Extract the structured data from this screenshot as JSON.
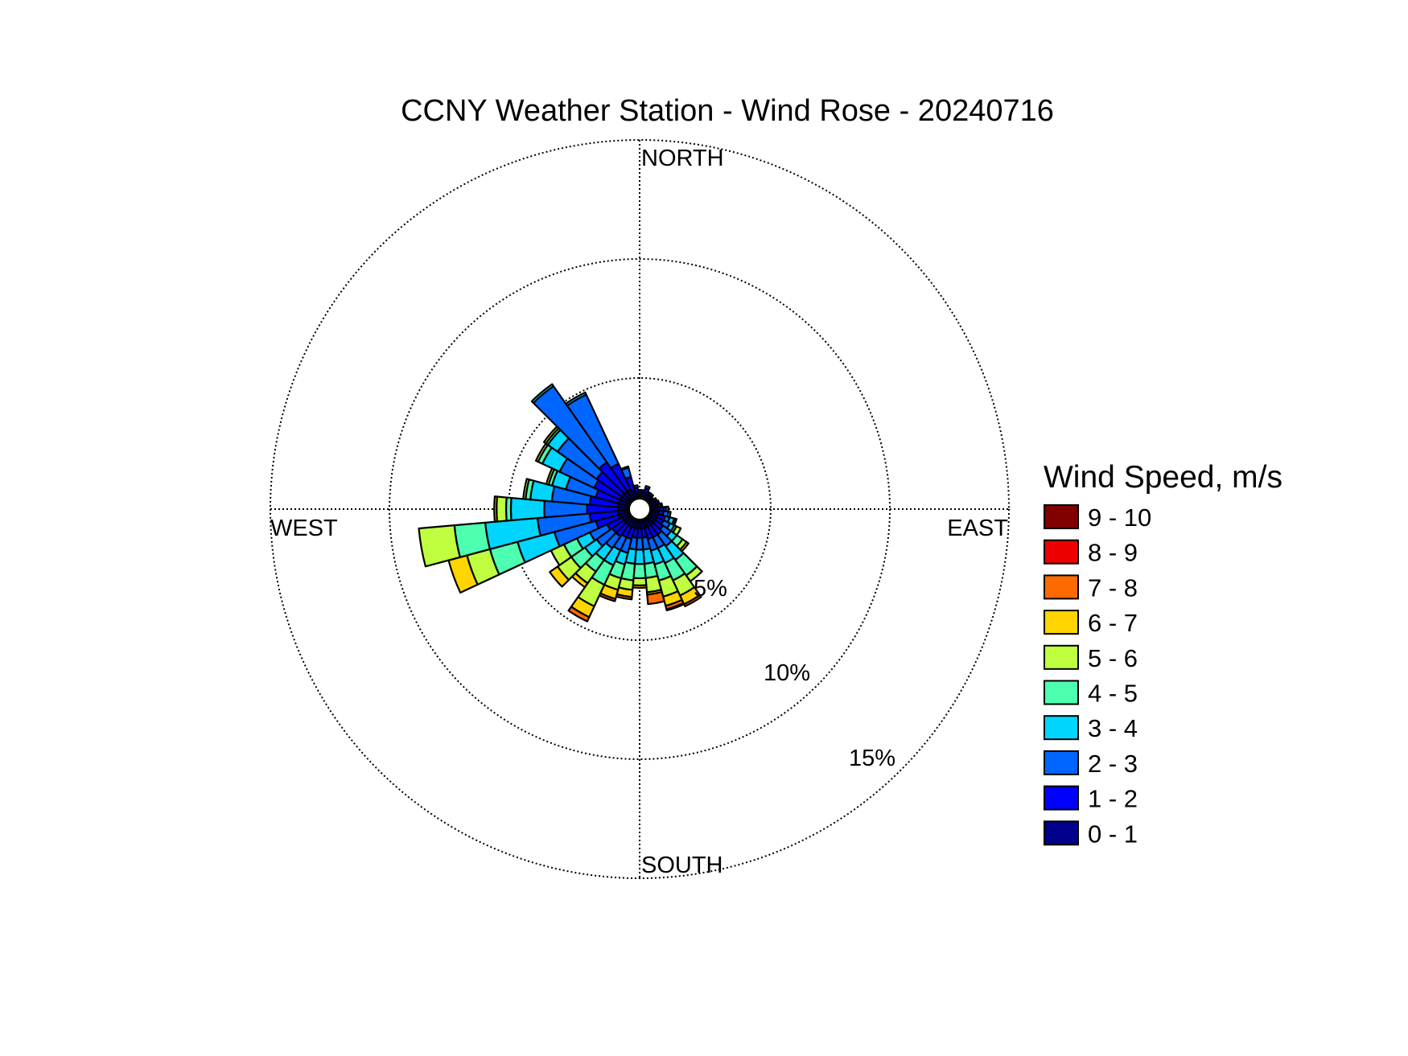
{
  "chart_data": {
    "type": "wind-rose",
    "title": "CCNY Weather Station - Wind Rose - 20240716",
    "direction_labels": {
      "north": "NORTH",
      "south": "SOUTH",
      "west": "WEST",
      "east": "EAST"
    },
    "radial_ticks": [
      5,
      10,
      15
    ],
    "radial_tick_labels": [
      "5%",
      "10%",
      "15%"
    ],
    "radial_max": 15,
    "grid": true,
    "legend": {
      "title": "Wind Speed, m/s",
      "placement": "right",
      "entries": [
        {
          "label": "9 - 10",
          "color": "#800000"
        },
        {
          "label": "8 - 9",
          "color": "#ee0000"
        },
        {
          "label": "7 - 8",
          "color": "#ff6a00"
        },
        {
          "label": "6 - 7",
          "color": "#ffd400"
        },
        {
          "label": "5 - 6",
          "color": "#bfff40"
        },
        {
          "label": "4 - 5",
          "color": "#4dffb0"
        },
        {
          "label": "3 - 4",
          "color": "#00d5ff"
        },
        {
          "label": "2 - 3",
          "color": "#0066ff"
        },
        {
          "label": "1 - 2",
          "color": "#0000ff"
        },
        {
          "label": "0 - 1",
          "color": "#00008a"
        }
      ]
    },
    "speed_bins": [
      "0 - 1",
      "1 - 2",
      "2 - 3",
      "3 - 4",
      "4 - 5",
      "5 - 6",
      "6 - 7",
      "7 - 8",
      "8 - 9",
      "9 - 10"
    ],
    "directions_deg": [
      0,
      10,
      20,
      30,
      40,
      50,
      60,
      70,
      80,
      90,
      100,
      110,
      120,
      130,
      140,
      150,
      160,
      170,
      180,
      190,
      200,
      210,
      220,
      230,
      240,
      250,
      260,
      270,
      280,
      290,
      300,
      310,
      320,
      330,
      340,
      350
    ],
    "frequency_percent": [
      [
        0.2,
        0.1,
        0,
        0,
        0,
        0,
        0,
        0,
        0,
        0
      ],
      [
        0.2,
        0.1,
        0,
        0,
        0,
        0,
        0,
        0,
        0,
        0
      ],
      [
        0.2,
        0.2,
        0.1,
        0,
        0,
        0,
        0,
        0,
        0,
        0
      ],
      [
        0.2,
        0.1,
        0,
        0,
        0,
        0,
        0,
        0,
        0,
        0
      ],
      [
        0.2,
        0.1,
        0,
        0,
        0,
        0,
        0,
        0,
        0,
        0
      ],
      [
        0.15,
        0.05,
        0,
        0,
        0,
        0,
        0,
        0,
        0,
        0
      ],
      [
        0.2,
        0.1,
        0,
        0,
        0,
        0,
        0,
        0,
        0,
        0
      ],
      [
        0.2,
        0.1,
        0.05,
        0,
        0,
        0,
        0,
        0,
        0,
        0
      ],
      [
        0.2,
        0.1,
        0.1,
        0.05,
        0,
        0,
        0,
        0,
        0,
        0
      ],
      [
        0.3,
        0.2,
        0.1,
        0.1,
        0,
        0,
        0,
        0,
        0,
        0
      ],
      [
        0.3,
        0.2,
        0.2,
        0.1,
        0,
        0,
        0,
        0,
        0,
        0
      ],
      [
        0.3,
        0.3,
        0.2,
        0.2,
        0.05,
        0.05,
        0,
        0,
        0,
        0
      ],
      [
        0.3,
        0.3,
        0.3,
        0.2,
        0.1,
        0.2,
        0,
        0,
        0,
        0
      ],
      [
        0.3,
        0.4,
        0.4,
        0.3,
        0.3,
        0.2,
        0.1,
        0,
        0,
        0
      ],
      [
        0.3,
        0.5,
        0.6,
        0.7,
        0.8,
        0.3,
        0,
        0,
        0,
        0
      ],
      [
        0.3,
        0.5,
        0.5,
        0.7,
        0.8,
        0.7,
        0.4,
        0.1,
        0,
        0
      ],
      [
        0.3,
        0.5,
        0.5,
        0.6,
        0.7,
        0.7,
        0.4,
        0.15,
        0.05,
        0
      ],
      [
        0.3,
        0.4,
        0.5,
        0.6,
        0.6,
        0.6,
        0.1,
        0.4,
        0,
        0
      ],
      [
        0.3,
        0.4,
        0.5,
        0.6,
        0.6,
        0.3,
        0.1,
        0,
        0,
        0
      ],
      [
        0.3,
        0.4,
        0.5,
        0.6,
        0.7,
        0.4,
        0.3,
        0.1,
        0,
        0
      ],
      [
        0.3,
        0.5,
        0.6,
        0.5,
        0.6,
        0.5,
        0.4,
        0.1,
        0,
        0
      ],
      [
        0.3,
        0.5,
        0.6,
        0.7,
        0.9,
        1.0,
        0.5,
        0.2,
        0,
        0
      ],
      [
        0.3,
        0.6,
        0.6,
        0.6,
        0.6,
        0.6,
        0.2,
        0,
        0,
        0
      ],
      [
        0.3,
        0.6,
        0.8,
        0.6,
        0.7,
        0.7,
        0.4,
        0,
        0,
        0
      ],
      [
        0.3,
        0.7,
        0.8,
        0.6,
        0.6,
        0.6,
        0,
        0,
        0,
        0
      ],
      [
        0.4,
        1.0,
        1.8,
        1.6,
        1.2,
        1.0,
        0.8,
        0,
        0,
        0
      ],
      [
        0.4,
        1.2,
        2.2,
        2.2,
        1.3,
        1.5,
        0,
        0,
        0,
        0
      ],
      [
        0.4,
        1.3,
        1.8,
        1.4,
        0.2,
        0.4,
        0.1,
        0,
        0,
        0
      ],
      [
        0.4,
        1.2,
        1.6,
        0.9,
        0.2,
        0.1,
        0,
        0,
        0,
        0
      ],
      [
        0.4,
        1.0,
        1.3,
        0.6,
        0.15,
        0,
        0.1,
        0,
        0,
        0
      ],
      [
        0.4,
        1.2,
        1.6,
        0.8,
        0.2,
        0,
        0.1,
        0,
        0,
        0
      ],
      [
        0.4,
        1.3,
        2.0,
        0.5,
        0.1,
        0,
        0.1,
        0,
        0,
        0
      ],
      [
        0.4,
        1.5,
        3.9,
        0.1,
        0,
        0,
        0,
        0,
        0,
        0
      ],
      [
        0.4,
        1.2,
        3.2,
        0.1,
        0,
        0,
        0,
        0,
        0,
        0
      ],
      [
        0.3,
        0.6,
        0.4,
        0.05,
        0,
        0,
        0,
        0,
        0,
        0
      ],
      [
        0.2,
        0.2,
        0.1,
        0,
        0,
        0,
        0,
        0,
        0,
        0
      ]
    ]
  }
}
